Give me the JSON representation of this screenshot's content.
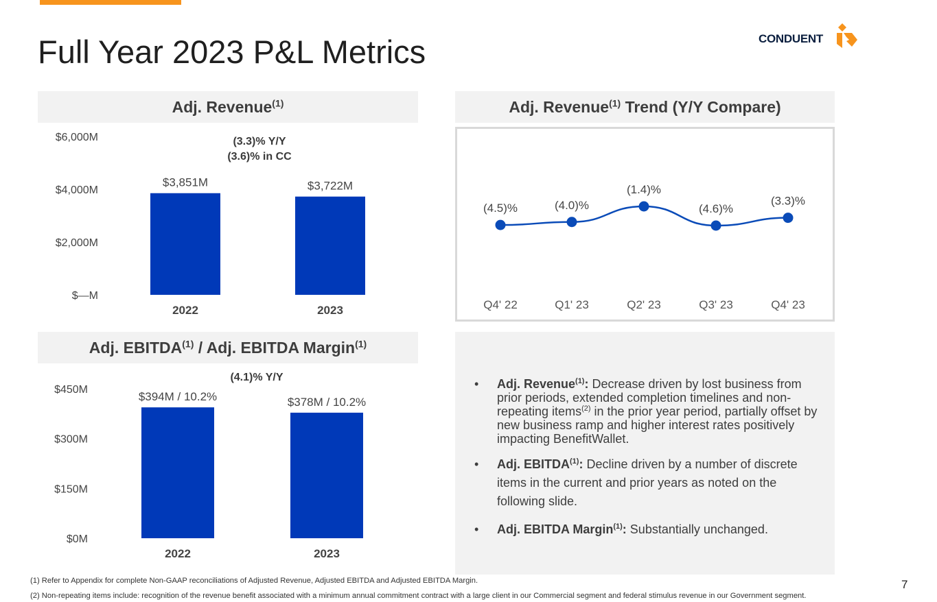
{
  "page": {
    "title": "Full Year 2023 P&L Metrics",
    "logo_text": "CONDUENT",
    "page_number": "7",
    "colors": {
      "accent": "#f7941d",
      "bar": "#0039b8",
      "line": "#0a4bb8",
      "logo_navy": "#0b1f3f"
    }
  },
  "panels": {
    "revenue": {
      "title": "Adj. Revenue",
      "sup": "(1)"
    },
    "trend": {
      "title_a": "Adj. Revenue",
      "sup": "(1)",
      "title_b": " Trend (Y/Y Compare)"
    },
    "ebitda": {
      "title_a": "Adj. EBITDA",
      "sup_a": "(1)",
      "title_b": " / Adj. EBITDA Margin",
      "sup_b": "(1)"
    }
  },
  "chart_data": [
    {
      "id": "revenue",
      "type": "bar",
      "categories": [
        "2022",
        "2023"
      ],
      "values": [
        3851,
        3722
      ],
      "data_labels": [
        "$3,851M",
        "$3,722M"
      ],
      "ylim": [
        0,
        6000
      ],
      "yticks": [
        0,
        2000,
        4000,
        6000
      ],
      "ytick_labels": [
        "$—M",
        "$2,000M",
        "$4,000M",
        "$6,000M"
      ],
      "annotation": [
        "(3.3)% Y/Y",
        "(3.6)% in CC"
      ],
      "unit": "$M"
    },
    {
      "id": "trend",
      "type": "line",
      "categories": [
        "Q4' 22",
        "Q1' 23",
        "Q2' 23",
        "Q3' 23",
        "Q4' 23"
      ],
      "values": [
        -4.5,
        -4.0,
        -1.4,
        -4.6,
        -3.3
      ],
      "data_labels": [
        "(4.5)%",
        "(4.0)%",
        "(1.4)%",
        "(4.6)%",
        "(3.3)%"
      ],
      "unit": "% Y/Y"
    },
    {
      "id": "ebitda",
      "type": "bar",
      "categories": [
        "2022",
        "2023"
      ],
      "values": [
        394,
        378
      ],
      "margins_pct": [
        10.2,
        10.2
      ],
      "data_labels": [
        "$394M / 10.2%",
        "$378M / 10.2%"
      ],
      "ylim": [
        0,
        450
      ],
      "yticks": [
        0,
        150,
        300,
        450
      ],
      "ytick_labels": [
        "$0M",
        "$150M",
        "$300M",
        "$450M"
      ],
      "annotation": [
        "(4.1)% Y/Y"
      ],
      "unit": "$M"
    }
  ],
  "bullets": [
    {
      "label": "Adj. Revenue",
      "sup": "(1)",
      "colon": ":",
      "text_a": " Decrease driven by lost business from prior periods, extended completion timelines and non-repeating items",
      "inner_sup": "(2)",
      "text_b": " in the prior year period, partially offset by new business ramp and higher interest rates positively impacting BenefitWallet."
    },
    {
      "label": "Adj. EBITDA",
      "sup": "(1)",
      "colon": ":",
      "text_a": " Decline driven by a number of discrete items in the current and prior years as noted on the following slide."
    },
    {
      "label": "Adj. EBITDA Margin",
      "sup": "(1)",
      "colon": ":",
      "text_a": " Substantially unchanged."
    }
  ],
  "bullet_symbol": "•",
  "footnotes": [
    "(1) Refer to Appendix for complete Non-GAAP reconciliations of Adjusted Revenue, Adjusted EBITDA and Adjusted EBITDA Margin.",
    "(2) Non-repeating items include: recognition of the revenue benefit associated with a minimum annual commitment contract with a large client in our Commercial segment and federal stimulus revenue in our Government segment."
  ]
}
